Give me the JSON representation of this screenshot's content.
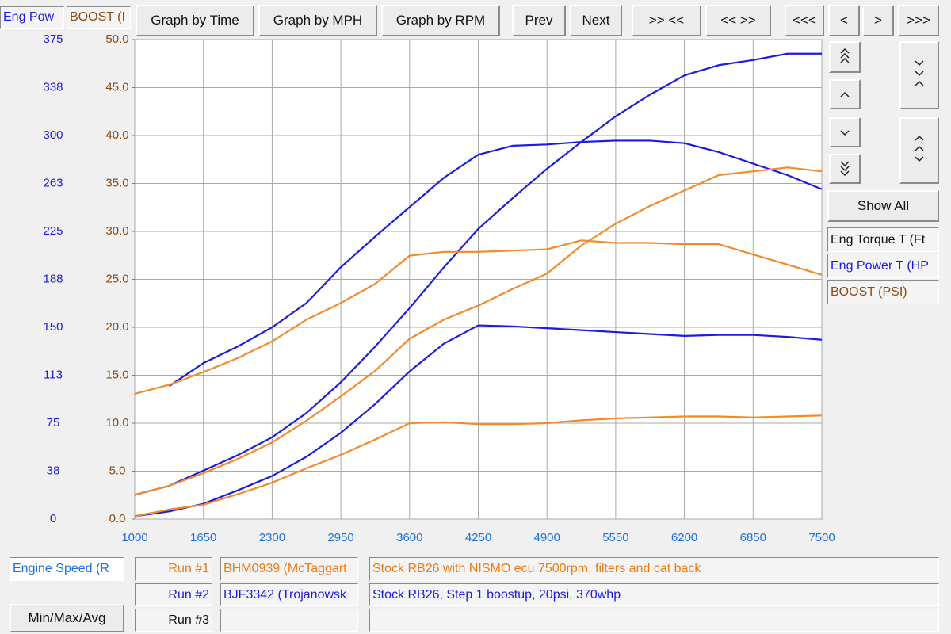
{
  "chart_data": {
    "type": "line",
    "ylabel": "Eng Pow",
    "y2label": "BOOST (I",
    "xlabel": "Engine Speed (R",
    "x": [
      1000,
      1325,
      1650,
      1975,
      2300,
      2625,
      2950,
      3275,
      3600,
      3925,
      4250,
      4575,
      4900,
      5225,
      5550,
      5875,
      6200,
      6525,
      6850,
      7175,
      7500
    ],
    "xlim": [
      1000,
      7500
    ],
    "xticks": [
      1000,
      1650,
      2300,
      2950,
      3600,
      4250,
      4900,
      5550,
      6200,
      6850,
      7500
    ],
    "ylim": [
      0,
      375
    ],
    "yticks": [
      0,
      {
        "value": 37.5,
        "label": "38"
      },
      75,
      {
        "value": 112.5,
        "label": "113"
      },
      150,
      {
        "value": 187.5,
        "label": "188"
      },
      225,
      {
        "value": 262.5,
        "label": "263"
      },
      300,
      {
        "value": 337.5,
        "label": "338"
      },
      375
    ],
    "y2lim": [
      0,
      50
    ],
    "y2ticks": [
      {
        "value": 0,
        "label": "0.0"
      },
      {
        "value": 5,
        "label": "5.0"
      },
      {
        "value": 10,
        "label": "10.0"
      },
      {
        "value": 15,
        "label": "15.0"
      },
      {
        "value": 20,
        "label": "20.0"
      },
      {
        "value": 25,
        "label": "25.0"
      },
      {
        "value": 30,
        "label": "30.0"
      },
      {
        "value": 35,
        "label": "35.0"
      },
      {
        "value": 40,
        "label": "40.0"
      },
      {
        "value": 45,
        "label": "45.0"
      },
      {
        "value": 50,
        "label": "50.0"
      }
    ],
    "grid": true,
    "series": [
      {
        "color": "#1c1ce0",
        "values": [
          19,
          26,
          38,
          50,
          64,
          83,
          107,
          135,
          165,
          197,
          227,
          251,
          274,
          295,
          315,
          332,
          347,
          355,
          359,
          364,
          364
        ]
      },
      {
        "color": "#1c1ce0",
        "values": [
          null,
          104,
          122,
          135,
          150,
          169,
          197,
          221,
          244,
          267,
          285,
          292,
          293,
          295,
          296,
          296,
          294,
          287,
          278,
          269,
          258
        ]
      },
      {
        "color": "#1c1ce0",
        "axis": "y2",
        "values": [
          0.3,
          0.8,
          1.6,
          3,
          4.5,
          6.5,
          9,
          12,
          15.4,
          18.3,
          20.2,
          20.1,
          19.9,
          19.7,
          19.5,
          19.3,
          19.1,
          19.2,
          19.2,
          19,
          18.7
        ]
      },
      {
        "color": "#f28a2a",
        "values": [
          19,
          26,
          36,
          47,
          60,
          77,
          96,
          116,
          141,
          156,
          167,
          180,
          192,
          214,
          231,
          245,
          257,
          269,
          272,
          275,
          272
        ]
      },
      {
        "color": "#f28a2a",
        "values": [
          98,
          105,
          115,
          126,
          139,
          156,
          169,
          184,
          206,
          209,
          209,
          210,
          211,
          218,
          216,
          216,
          215,
          215,
          207,
          199,
          191
        ]
      },
      {
        "color": "#f28a2a",
        "axis": "y2",
        "values": [
          0.3,
          1.0,
          1.5,
          2.6,
          3.8,
          5.3,
          6.7,
          8.3,
          10,
          10.1,
          9.9,
          9.9,
          10,
          10.3,
          10.5,
          10.6,
          10.7,
          10.7,
          10.6,
          10.7,
          10.8
        ]
      }
    ]
  },
  "ui": {
    "top_buttons": [
      "Graph by Time",
      "Graph by MPH",
      "Graph by RPM",
      "Prev",
      "Next",
      ">> <<",
      "<< >>",
      "<<<",
      "<",
      ">",
      ">>>"
    ],
    "show_all": "Show All",
    "legend": [
      "Eng Torque T (Ft",
      "Eng Power T (HP",
      "BOOST (PSI)"
    ],
    "min_max_avg": "Min/Max/Avg",
    "runs": [
      {
        "label": "Run #1",
        "id": "BHM0939 (McTaggart",
        "description": "Stock RB26 with NISMO ecu 7500rpm, filters and cat back"
      },
      {
        "label": "Run #2",
        "id": "BJF3342 (Trojanowsk",
        "description": "Stock RB26, Step 1 boostup, 20psi, 370whp"
      },
      {
        "label": "Run #3"
      }
    ]
  }
}
